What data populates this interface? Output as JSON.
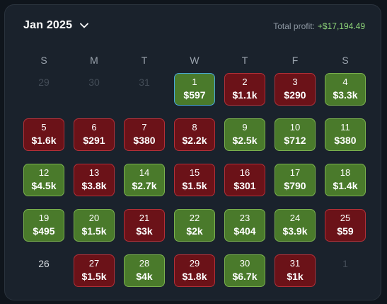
{
  "header": {
    "month": "Jan 2025",
    "profit_label": "Total profit:",
    "profit_value": "+$17,194.49"
  },
  "weekdays": [
    "S",
    "M",
    "T",
    "W",
    "T",
    "F",
    "S"
  ],
  "colors": {
    "win": "#4a7a2b",
    "loss": "#6b1218",
    "selected_border": "#48a8d8",
    "profit_text": "#8fd67a"
  },
  "weeks": [
    [
      {
        "day": "29",
        "type": "outside"
      },
      {
        "day": "30",
        "type": "outside"
      },
      {
        "day": "31",
        "type": "outside"
      },
      {
        "day": "1",
        "value": "$597",
        "type": "win",
        "selected": true
      },
      {
        "day": "2",
        "value": "$1.1k",
        "type": "loss"
      },
      {
        "day": "3",
        "value": "$290",
        "type": "loss"
      },
      {
        "day": "4",
        "value": "$3.3k",
        "type": "win"
      }
    ],
    [
      {
        "day": "5",
        "value": "$1.6k",
        "type": "loss"
      },
      {
        "day": "6",
        "value": "$291",
        "type": "loss"
      },
      {
        "day": "7",
        "value": "$380",
        "type": "loss"
      },
      {
        "day": "8",
        "value": "$2.2k",
        "type": "loss"
      },
      {
        "day": "9",
        "value": "$2.5k",
        "type": "win"
      },
      {
        "day": "10",
        "value": "$712",
        "type": "win"
      },
      {
        "day": "11",
        "value": "$380",
        "type": "win"
      }
    ],
    [
      {
        "day": "12",
        "value": "$4.5k",
        "type": "win"
      },
      {
        "day": "13",
        "value": "$3.8k",
        "type": "loss"
      },
      {
        "day": "14",
        "value": "$2.7k",
        "type": "win"
      },
      {
        "day": "15",
        "value": "$1.5k",
        "type": "loss"
      },
      {
        "day": "16",
        "value": "$301",
        "type": "loss"
      },
      {
        "day": "17",
        "value": "$790",
        "type": "win"
      },
      {
        "day": "18",
        "value": "$1.4k",
        "type": "win"
      }
    ],
    [
      {
        "day": "19",
        "value": "$495",
        "type": "win"
      },
      {
        "day": "20",
        "value": "$1.5k",
        "type": "win"
      },
      {
        "day": "21",
        "value": "$3k",
        "type": "loss"
      },
      {
        "day": "22",
        "value": "$2k",
        "type": "win"
      },
      {
        "day": "23",
        "value": "$404",
        "type": "win"
      },
      {
        "day": "24",
        "value": "$3.9k",
        "type": "win"
      },
      {
        "day": "25",
        "value": "$59",
        "type": "loss"
      }
    ],
    [
      {
        "day": "26",
        "type": "current"
      },
      {
        "day": "27",
        "value": "$1.5k",
        "type": "loss"
      },
      {
        "day": "28",
        "value": "$4k",
        "type": "win"
      },
      {
        "day": "29",
        "value": "$1.8k",
        "type": "loss"
      },
      {
        "day": "30",
        "value": "$6.7k",
        "type": "win"
      },
      {
        "day": "31",
        "value": "$1k",
        "type": "loss"
      },
      {
        "day": "1",
        "type": "outside"
      }
    ]
  ]
}
